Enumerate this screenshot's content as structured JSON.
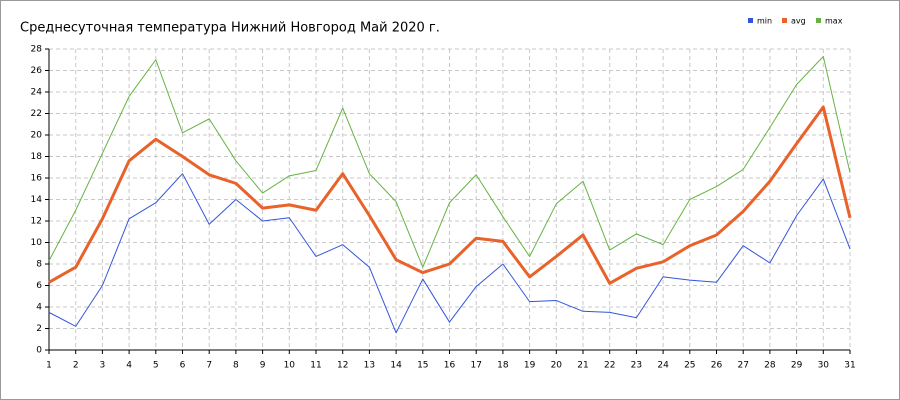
{
  "chart_data": {
    "type": "line",
    "title": "Среднесуточная температура Нижний Новгород  Май 2020 г.",
    "x": [
      1,
      2,
      3,
      4,
      5,
      6,
      7,
      8,
      9,
      10,
      11,
      12,
      13,
      14,
      15,
      16,
      17,
      18,
      19,
      20,
      21,
      22,
      23,
      24,
      25,
      26,
      27,
      28,
      29,
      30,
      31
    ],
    "xlim": [
      1,
      31
    ],
    "xticks": [
      1,
      2,
      3,
      4,
      5,
      6,
      7,
      8,
      9,
      10,
      11,
      12,
      13,
      14,
      15,
      16,
      17,
      18,
      19,
      20,
      21,
      22,
      23,
      24,
      25,
      26,
      27,
      28,
      29,
      30,
      31
    ],
    "ylim": [
      0,
      28
    ],
    "yticks": [
      0,
      2,
      4,
      6,
      8,
      10,
      12,
      14,
      16,
      18,
      20,
      22,
      24,
      26,
      28
    ],
    "grid": true,
    "legend": "top-right",
    "series": [
      {
        "name": "min",
        "color": "#3355dd",
        "values": [
          3.5,
          2.2,
          6.0,
          12.2,
          13.7,
          16.4,
          11.7,
          14.0,
          12.0,
          12.3,
          8.7,
          9.8,
          7.7,
          1.6,
          6.6,
          2.6,
          5.9,
          8.0,
          4.5,
          4.6,
          3.6,
          3.5,
          3.0,
          6.8,
          6.5,
          6.3,
          9.7,
          8.1,
          12.5,
          15.9,
          9.4
        ]
      },
      {
        "name": "avg",
        "color": "#e8622a",
        "values": [
          6.3,
          7.7,
          12.2,
          17.6,
          19.6,
          18.0,
          16.3,
          15.5,
          13.2,
          13.5,
          13.0,
          16.4,
          12.5,
          8.4,
          7.2,
          8.0,
          10.4,
          10.1,
          6.8,
          8.7,
          10.7,
          6.2,
          7.6,
          8.2,
          9.7,
          10.7,
          12.9,
          15.7,
          19.2,
          22.6,
          12.3
        ]
      },
      {
        "name": "max",
        "color": "#66b344",
        "values": [
          8.3,
          13.0,
          18.3,
          23.6,
          27.0,
          20.2,
          21.5,
          17.6,
          14.6,
          16.2,
          16.7,
          22.5,
          16.4,
          13.8,
          7.7,
          13.7,
          16.3,
          12.4,
          8.7,
          13.6,
          15.7,
          9.3,
          10.8,
          9.8,
          14.0,
          15.2,
          16.8,
          20.7,
          24.7,
          27.3,
          16.5
        ]
      }
    ]
  }
}
